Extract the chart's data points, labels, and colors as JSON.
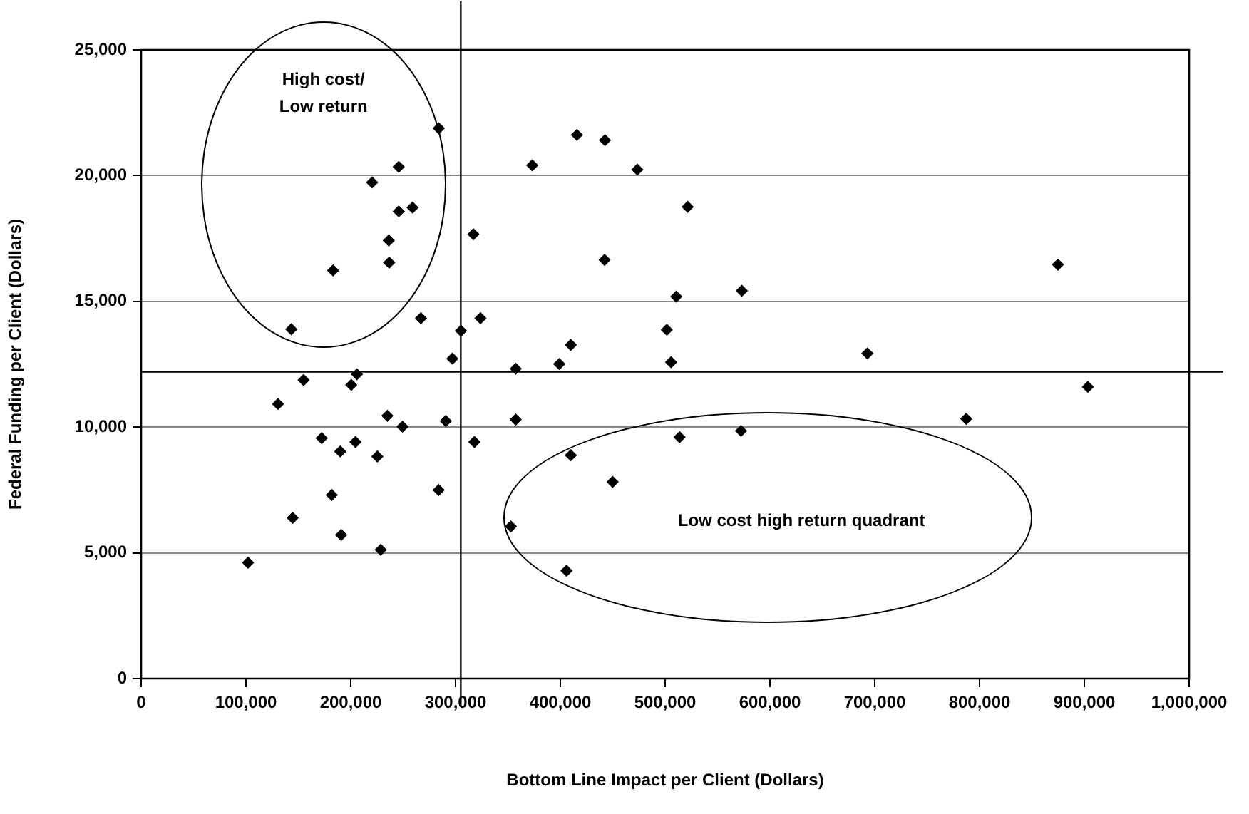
{
  "chart_data": {
    "type": "scatter",
    "xlabel": "Bottom Line Impact per Client (Dollars)",
    "ylabel": "Federal Funding per Client (Dollars)",
    "x": [
      102000,
      144600,
      190900,
      228600,
      181900,
      283900,
      172300,
      190000,
      204500,
      225400,
      318000,
      290700,
      249400,
      235000,
      130600,
      155000,
      205900,
      200500,
      297000,
      143300,
      305200,
      267000,
      323800,
      183200,
      236700,
      236300,
      245800,
      259000,
      220400,
      245800,
      284000,
      317000,
      415800,
      442600,
      373200,
      473500,
      521500,
      442200,
      510600,
      573200,
      501600,
      410000,
      399000,
      357400,
      505700,
      357400,
      410000,
      513800,
      572400,
      449900,
      352800,
      405900,
      874800,
      693000,
      903400,
      787300
    ],
    "values": [
      4610,
      6390,
      5710,
      5120,
      7300,
      7500,
      9560,
      9030,
      9410,
      8830,
      9410,
      10240,
      10020,
      10450,
      10920,
      11870,
      12100,
      11680,
      12720,
      13890,
      13830,
      14330,
      14330,
      16230,
      16540,
      17420,
      18580,
      18730,
      19730,
      20350,
      21880,
      17670,
      21620,
      21410,
      20410,
      20240,
      18760,
      16650,
      15190,
      15420,
      13870,
      13270,
      12510,
      12320,
      12580,
      10300,
      8880,
      9600,
      9850,
      7820,
      6050,
      4290,
      16460,
      12930,
      11600,
      10330
    ],
    "color": "#000000",
    "marker": "diamond",
    "xlim": [
      0,
      1000000
    ],
    "ylim": [
      0,
      25000
    ],
    "xticks": [
      0,
      {
        "value": 100000,
        "label": "100,000"
      },
      {
        "value": 200000,
        "label": "200,000"
      },
      {
        "value": 300000,
        "label": "300,000"
      },
      {
        "value": 400000,
        "label": "400,000"
      },
      {
        "value": 500000,
        "label": "500,000"
      },
      {
        "value": 600000,
        "label": "600,000"
      },
      {
        "value": 700000,
        "label": "700,000"
      },
      {
        "value": 800000,
        "label": "800,000"
      },
      {
        "value": 900000,
        "label": "900,000"
      },
      {
        "value": 1000000,
        "label": "1,000,000"
      }
    ],
    "yticks": [
      0,
      {
        "value": 5000,
        "label": "5,000"
      },
      {
        "value": 10000,
        "label": "10,000"
      },
      {
        "value": 15000,
        "label": "15,000"
      },
      {
        "value": 20000,
        "label": "20,000"
      },
      {
        "value": 25000,
        "label": "25,000"
      }
    ],
    "grid": "y",
    "legend": false,
    "ref_lines": [
      {
        "axis": "x",
        "value": 305000,
        "color": "#000000"
      },
      {
        "axis": "y",
        "value": 12200,
        "color": "#000000"
      }
    ],
    "annotations": [
      "High cost/\nLow return",
      "Low cost high return quadrant"
    ]
  }
}
